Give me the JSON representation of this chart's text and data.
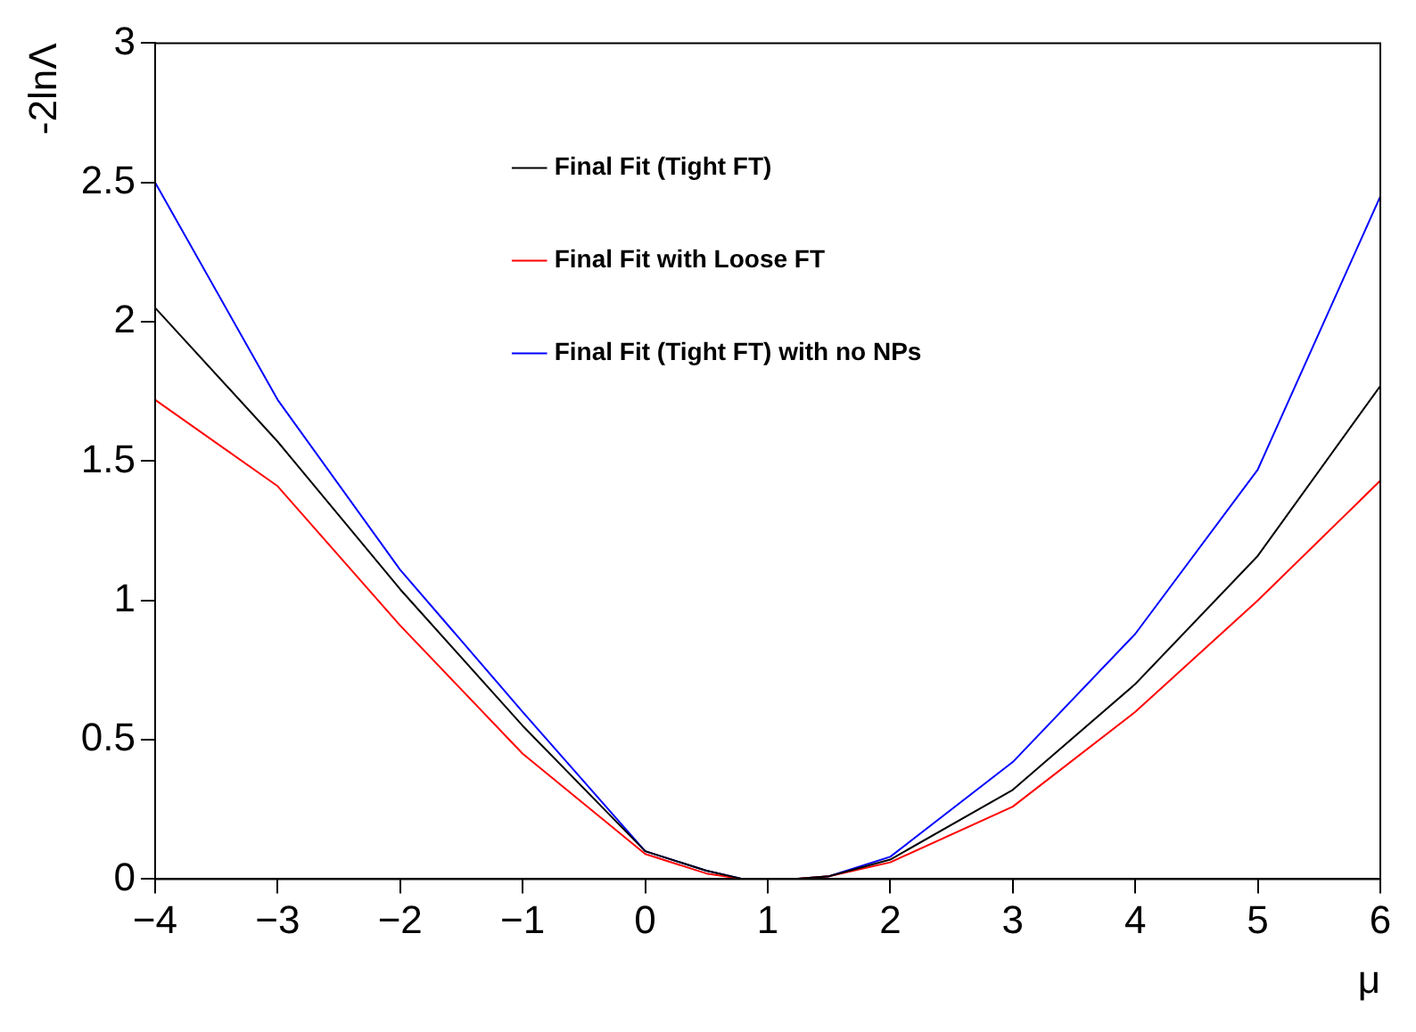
{
  "chart_data": {
    "type": "line",
    "xlabel": "μ",
    "ylabel": "-2lnΛ",
    "xlim": [
      -4,
      6
    ],
    "ylim": [
      0,
      3
    ],
    "xticks": [
      -4,
      -3,
      -2,
      -1,
      0,
      1,
      2,
      3,
      4,
      5,
      6
    ],
    "yticks": [
      0,
      0.5,
      1,
      1.5,
      2,
      2.5,
      3
    ],
    "grid": false,
    "legend": "top",
    "marker": "none",
    "line_style": "solid",
    "x": [
      -4,
      -3,
      -2,
      -1,
      0,
      0.5,
      0.8,
      1,
      1.2,
      1.5,
      2,
      3,
      4,
      5,
      6
    ],
    "series": [
      {
        "name": "Final Fit (Tight FT)",
        "color": "#000000",
        "values": [
          2.05,
          1.57,
          1.04,
          0.55,
          0.1,
          0.03,
          0,
          0,
          0,
          0.01,
          0.07,
          0.32,
          0.7,
          1.16,
          1.77
        ]
      },
      {
        "name": "Final Fit with Loose FT",
        "color": "#ff0000",
        "values": [
          1.72,
          1.41,
          0.91,
          0.45,
          0.09,
          0.02,
          0,
          0,
          0,
          0.01,
          0.06,
          0.26,
          0.6,
          1.0,
          1.43
        ]
      },
      {
        "name": "Final Fit (Tight FT) with no NPs",
        "color": "#0000ff",
        "values": [
          2.5,
          1.72,
          1.11,
          0.6,
          0.1,
          0.03,
          0,
          0,
          0,
          0.01,
          0.08,
          0.42,
          0.88,
          1.47,
          2.45
        ]
      }
    ]
  }
}
